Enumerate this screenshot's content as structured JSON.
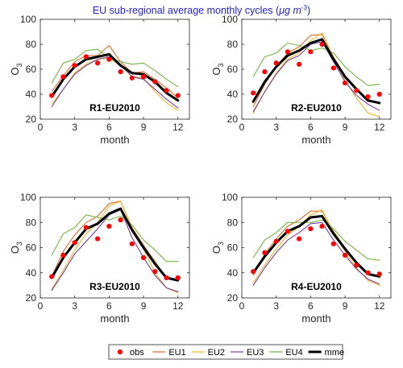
{
  "title": "EU sub-regional average monthly cycles (",
  "title_unit": "μg m",
  "title_unit_sup": "-3",
  "title_close": ")",
  "title_color": "#1f1fd6",
  "legend": {
    "placement": "bottom",
    "entries": [
      {
        "key": "obs",
        "label": "obs",
        "color": "#ff0000",
        "style": "marker"
      },
      {
        "key": "EU1",
        "label": "EU1",
        "color": "#e06c2c",
        "style": "line"
      },
      {
        "key": "EU2",
        "label": "EU2",
        "color": "#f0b428",
        "style": "line"
      },
      {
        "key": "EU3",
        "label": "EU3",
        "color": "#7a3ea6",
        "style": "line"
      },
      {
        "key": "EU4",
        "label": "EU4",
        "color": "#74b544",
        "style": "line"
      },
      {
        "key": "mme",
        "label": "mme",
        "color": "#000000",
        "style": "thick-line"
      }
    ]
  },
  "chart_data": [
    {
      "type": "line",
      "panel_label": "R1-EU2010",
      "xlabel": "month",
      "ylabel": "O",
      "ylabel_sub": "3",
      "xlim": [
        0,
        13
      ],
      "ylim": [
        20,
        100
      ],
      "xticks": [
        0,
        3,
        6,
        9,
        12
      ],
      "yticks": [
        20,
        40,
        60,
        80,
        100
      ],
      "x": [
        1,
        2,
        3,
        4,
        5,
        6,
        7,
        8,
        9,
        10,
        11,
        12
      ],
      "series": [
        {
          "name": "obs",
          "values": [
            39,
            54,
            63,
            70,
            65,
            68,
            58,
            53,
            54,
            50,
            43,
            39
          ]
        },
        {
          "name": "EU1",
          "values": [
            42,
            55,
            66,
            71,
            71,
            79,
            66,
            57,
            58,
            52,
            45,
            37
          ]
        },
        {
          "name": "EU2",
          "values": [
            32,
            44,
            57,
            64,
            68,
            69,
            63,
            54,
            53,
            42,
            33,
            27
          ]
        },
        {
          "name": "EU3",
          "values": [
            30,
            44,
            56,
            63,
            68,
            70,
            64,
            54,
            52,
            44,
            36,
            29
          ]
        },
        {
          "name": "EU4",
          "values": [
            49,
            65,
            68,
            75,
            76,
            69,
            66,
            64,
            65,
            59,
            52,
            46
          ]
        },
        {
          "name": "mme",
          "values": [
            38,
            52,
            62,
            68,
            70,
            72,
            63,
            57,
            56,
            50,
            41,
            35
          ]
        }
      ]
    },
    {
      "type": "line",
      "panel_label": "R2-EU2010",
      "xlabel": "month",
      "ylabel": "O",
      "ylabel_sub": "3",
      "xlim": [
        0,
        13
      ],
      "ylim": [
        20,
        100
      ],
      "xticks": [
        0,
        3,
        6,
        9,
        12
      ],
      "yticks": [
        20,
        40,
        60,
        80,
        100
      ],
      "x": [
        1,
        2,
        3,
        4,
        5,
        6,
        7,
        8,
        9,
        10,
        11,
        12
      ],
      "series": [
        {
          "name": "obs",
          "values": [
            41,
            58,
            65,
            74,
            64,
            74,
            80,
            61,
            49,
            43,
            38,
            40
          ]
        },
        {
          "name": "EU1",
          "values": [
            30,
            48,
            62,
            73,
            78,
            87,
            88,
            70,
            55,
            44,
            36,
            32
          ]
        },
        {
          "name": "EU2",
          "values": [
            25,
            42,
            57,
            68,
            73,
            83,
            89,
            70,
            51,
            37,
            25,
            22
          ]
        },
        {
          "name": "EU3",
          "values": [
            26,
            42,
            56,
            67,
            71,
            80,
            82,
            66,
            50,
            39,
            32,
            27
          ]
        },
        {
          "name": "EU4",
          "values": [
            54,
            70,
            73,
            81,
            79,
            75,
            77,
            73,
            62,
            54,
            47,
            48
          ]
        },
        {
          "name": "mme",
          "values": [
            34,
            50,
            62,
            71,
            75,
            81,
            84,
            68,
            54,
            44,
            35,
            33
          ]
        }
      ]
    },
    {
      "type": "line",
      "panel_label": "R3-EU2010",
      "xlabel": "month",
      "ylabel": "O",
      "ylabel_sub": "3",
      "xlim": [
        0,
        13
      ],
      "ylim": [
        20,
        100
      ],
      "xticks": [
        0,
        3,
        6,
        9,
        12
      ],
      "yticks": [
        20,
        40,
        60,
        80,
        100
      ],
      "x": [
        1,
        2,
        3,
        4,
        5,
        6,
        7,
        8,
        9,
        10,
        11,
        12
      ],
      "series": [
        {
          "name": "obs",
          "values": [
            37,
            54,
            64,
            76,
            67,
            77,
            82,
            63,
            52,
            41,
            36,
            36
          ]
        },
        {
          "name": "EU1",
          "values": [
            37,
            57,
            70,
            80,
            85,
            95,
            97,
            76,
            62,
            49,
            36,
            35
          ]
        },
        {
          "name": "EU2",
          "values": [
            27,
            42,
            58,
            71,
            80,
            93,
            97,
            76,
            59,
            40,
            28,
            24
          ]
        },
        {
          "name": "EU3",
          "values": [
            26,
            40,
            55,
            65,
            75,
            86,
            90,
            68,
            52,
            38,
            28,
            25
          ]
        },
        {
          "name": "EU4",
          "values": [
            54,
            71,
            76,
            86,
            84,
            82,
            85,
            78,
            66,
            58,
            49,
            49
          ]
        },
        {
          "name": "mme",
          "values": [
            36,
            52,
            64,
            75,
            79,
            87,
            91,
            74,
            60,
            47,
            36,
            34
          ]
        }
      ]
    },
    {
      "type": "line",
      "panel_label": "R4-EU2010",
      "xlabel": "month",
      "ylabel": "O",
      "ylabel_sub": "3",
      "xlim": [
        0,
        13
      ],
      "ylim": [
        20,
        100
      ],
      "xticks": [
        0,
        3,
        6,
        9,
        12
      ],
      "yticks": [
        20,
        40,
        60,
        80,
        100
      ],
      "x": [
        1,
        2,
        3,
        4,
        5,
        6,
        7,
        8,
        9,
        10,
        11,
        12
      ],
      "series": [
        {
          "name": "obs",
          "values": [
            41,
            56,
            65,
            73,
            67,
            75,
            77,
            63,
            54,
            46,
            40,
            39
          ]
        },
        {
          "name": "EU1",
          "values": [
            38,
            55,
            67,
            77,
            82,
            89,
            89,
            73,
            60,
            49,
            39,
            37
          ]
        },
        {
          "name": "EU2",
          "values": [
            32,
            46,
            59,
            70,
            77,
            86,
            90,
            72,
            57,
            44,
            34,
            30
          ]
        },
        {
          "name": "EU3",
          "values": [
            30,
            44,
            56,
            66,
            72,
            79,
            80,
            66,
            54,
            43,
            35,
            31
          ]
        },
        {
          "name": "EU4",
          "values": [
            52,
            66,
            72,
            80,
            80,
            80,
            82,
            75,
            65,
            58,
            51,
            50
          ]
        },
        {
          "name": "mme",
          "values": [
            40,
            53,
            64,
            73,
            77,
            84,
            85,
            71,
            59,
            48,
            39,
            37
          ]
        }
      ]
    }
  ]
}
